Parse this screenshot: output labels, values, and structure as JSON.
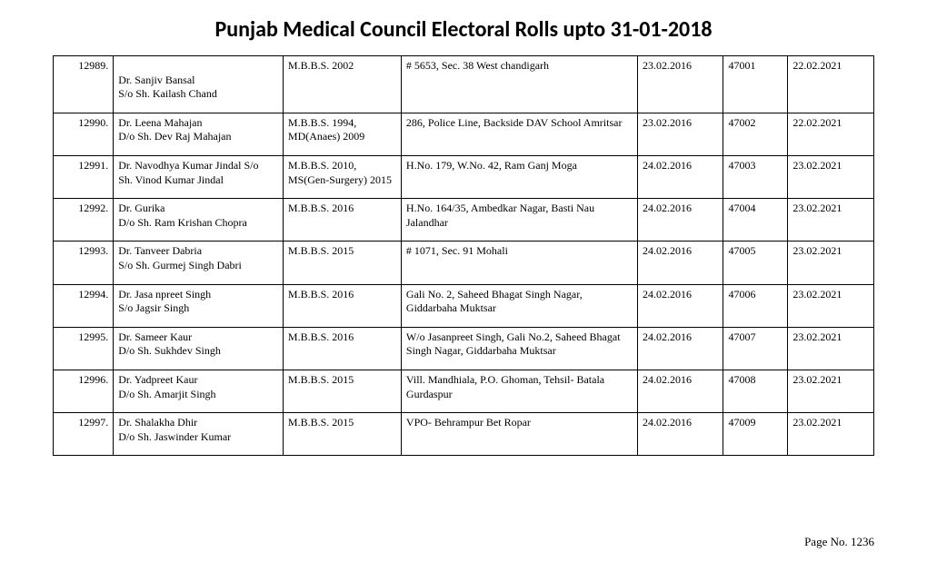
{
  "title": "Punjab Medical Council Electoral Rolls upto 31-01-2018",
  "footer": "Page No. 1236",
  "columns": [
    "sr",
    "name",
    "qual",
    "addr",
    "d1",
    "num",
    "d2"
  ],
  "rows": [
    {
      "sr": "12989.",
      "name": "\nDr. Sanjiv  Bansal\nS/o Sh. Kailash Chand",
      "qual": "M.B.B.S. 2002",
      "addr": "# 5653, Sec. 38 West chandigarh",
      "d1": "23.02.2016",
      "num": "47001",
      "d2": "22.02.2021"
    },
    {
      "sr": "12990.",
      "name": "Dr. Leena Mahajan\nD/o Sh. Dev Raj Mahajan",
      "qual": "M.B.B.S. 1994, MD(Anaes) 2009",
      "addr": "286, Police Line, Backside DAV School Amritsar",
      "d1": "23.02.2016",
      "num": "47002",
      "d2": "22.02.2021"
    },
    {
      "sr": "12991.",
      "name": "Dr. Navodhya Kumar Jindal S/o\nSh. Vinod Kumar Jindal",
      "qual": "M.B.B.S. 2010, MS(Gen-Surgery) 2015",
      "addr": "H.No. 179, W.No. 42, Ram Ganj Moga",
      "d1": "24.02.2016",
      "num": "47003",
      "d2": "23.02.2021"
    },
    {
      "sr": "12992.",
      "name": "Dr. Gurika\nD/o Sh. Ram Krishan Chopra",
      "qual": "M.B.B.S. 2016",
      "addr": "H.No. 164/35, Ambedkar Nagar, Basti Nau Jalandhar",
      "d1": "24.02.2016",
      "num": "47004",
      "d2": "23.02.2021"
    },
    {
      "sr": "12993.",
      "name": "Dr. Tanveer  Dabria\nS/o Sh. Gurmej Singh Dabri",
      "qual": "M.B.B.S. 2015",
      "addr": "# 1071, Sec. 91 Mohali",
      "d1": "24.02.2016",
      "num": "47005",
      "d2": "23.02.2021"
    },
    {
      "sr": "12994.",
      "name": "Dr. Jasa npreet  Singh\nS/o Jagsir Singh",
      "qual": "M.B.B.S. 2016",
      "addr": "Gali No. 2, Saheed Bhagat Singh Nagar, Giddarbaha Muktsar",
      "d1": "24.02.2016",
      "num": "47006",
      "d2": "23.02.2021"
    },
    {
      "sr": "12995.",
      "name": "Dr. Sameer Kaur\nD/o Sh. Sukhdev Singh",
      "qual": "M.B.B.S. 2016",
      "addr": "W/o Jasanpreet Singh, Gali No.2, Saheed Bhagat Singh Nagar, Giddarbaha Muktsar",
      "d1": "24.02.2016",
      "num": "47007",
      "d2": "23.02.2021"
    },
    {
      "sr": "12996.",
      "name": "Dr. Yadpreet  Kaur\nD/o Sh. Amarjit Singh",
      "qual": "M.B.B.S. 2015",
      "addr": "Vill. Mandhiala, P.O. Ghoman, Tehsil- Batala Gurdaspur",
      "d1": "24.02.2016",
      "num": "47008",
      "d2": "23.02.2021"
    },
    {
      "sr": "12997.",
      "name": "Dr. Shalakha Dhir\nD/o Sh. Jaswinder Kumar",
      "qual": "M.B.B.S. 2015",
      "addr": "VPO- Behrampur Bet Ropar",
      "d1": "24.02.2016",
      "num": "47009",
      "d2": "23.02.2021"
    }
  ]
}
